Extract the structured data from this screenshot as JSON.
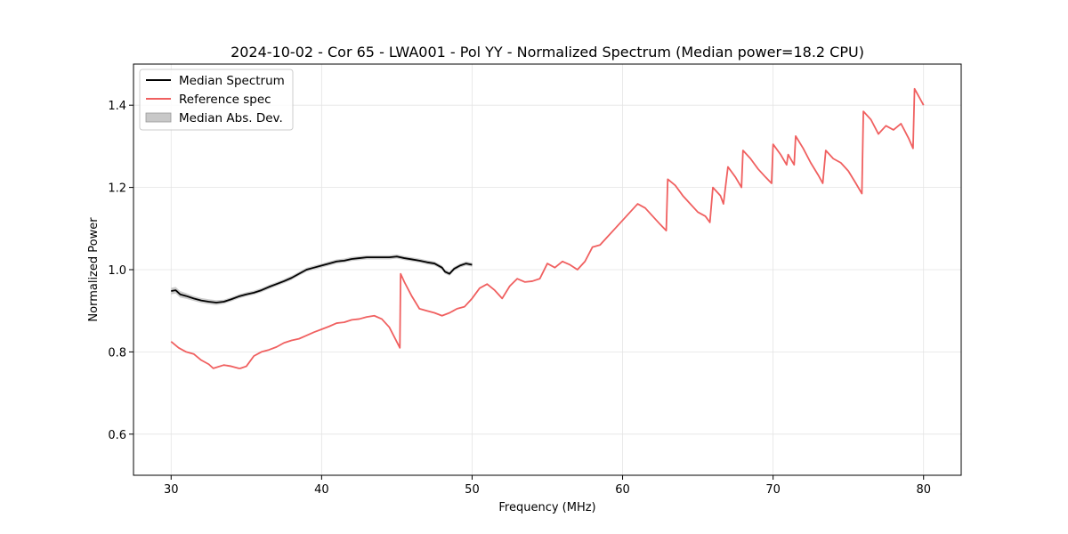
{
  "chart_data": {
    "type": "line",
    "title": "2024-10-02 - Cor 65 - LWA001 - Pol YY - Normalized Spectrum (Median power=18.2 CPU)",
    "xlabel": "Frequency (MHz)",
    "ylabel": "Normalized Power",
    "xlim": [
      27.5,
      82.5
    ],
    "ylim": [
      0.5,
      1.5
    ],
    "xticks": [
      30,
      40,
      50,
      60,
      70,
      80
    ],
    "yticks": [
      0.6,
      0.8,
      1.0,
      1.2,
      1.4
    ],
    "xtick_labels": [
      "30",
      "40",
      "50",
      "60",
      "70",
      "80"
    ],
    "ytick_labels": [
      "0.6",
      "0.8",
      "1.0",
      "1.2",
      "1.4"
    ],
    "grid": true,
    "legend_position": "top-left",
    "legend": [
      "Median Spectrum",
      "Reference spec",
      "Median Abs. Dev."
    ],
    "colors": {
      "median": "#000000",
      "reference": "#f06060",
      "mad": "#c8c8c8"
    },
    "series": [
      {
        "name": "Median Spectrum",
        "x": [
          30.0,
          30.3,
          30.6,
          31.0,
          31.5,
          32.0,
          32.5,
          33.0,
          33.5,
          34.0,
          34.5,
          35.0,
          35.5,
          36.0,
          36.5,
          37.0,
          37.5,
          38.0,
          38.5,
          39.0,
          39.5,
          40.0,
          40.5,
          41.0,
          41.5,
          42.0,
          42.5,
          43.0,
          43.5,
          44.0,
          44.5,
          45.0,
          45.5,
          46.0,
          46.5,
          47.0,
          47.5,
          48.0,
          48.2,
          48.5,
          48.8,
          49.2,
          49.6,
          50.0
        ],
        "y": [
          0.948,
          0.95,
          0.94,
          0.936,
          0.93,
          0.925,
          0.922,
          0.92,
          0.922,
          0.928,
          0.935,
          0.94,
          0.944,
          0.95,
          0.958,
          0.965,
          0.972,
          0.98,
          0.99,
          1.0,
          1.005,
          1.01,
          1.015,
          1.02,
          1.022,
          1.026,
          1.028,
          1.03,
          1.03,
          1.03,
          1.03,
          1.032,
          1.028,
          1.025,
          1.022,
          1.018,
          1.015,
          1.005,
          0.995,
          0.99,
          1.002,
          1.01,
          1.015,
          1.012
        ]
      },
      {
        "name": "Median Abs. Dev.",
        "x": [
          30.0,
          30.3,
          30.6,
          31.0,
          31.5,
          32.0,
          32.5,
          33.0,
          33.5,
          34.0,
          34.5,
          35.0,
          35.5,
          36.0,
          36.5,
          37.0,
          37.5,
          38.0,
          38.5,
          39.0,
          39.5,
          40.0,
          40.5,
          41.0,
          41.5,
          42.0,
          42.5,
          43.0,
          43.5,
          44.0,
          44.5,
          45.0,
          45.5,
          46.0,
          46.5,
          47.0,
          47.5,
          48.0,
          48.2,
          48.5,
          48.8,
          49.2,
          49.6,
          50.0
        ],
        "upper": [
          0.956,
          0.958,
          0.948,
          0.943,
          0.936,
          0.931,
          0.928,
          0.926,
          0.927,
          0.933,
          0.94,
          0.945,
          0.949,
          0.955,
          0.963,
          0.97,
          0.977,
          0.985,
          0.995,
          1.005,
          1.01,
          1.015,
          1.02,
          1.025,
          1.027,
          1.031,
          1.033,
          1.035,
          1.035,
          1.035,
          1.035,
          1.037,
          1.033,
          1.03,
          1.027,
          1.023,
          1.02,
          1.01,
          1.0,
          0.995,
          1.007,
          1.015,
          1.02,
          1.017
        ],
        "lower": [
          0.94,
          0.942,
          0.932,
          0.929,
          0.924,
          0.919,
          0.916,
          0.914,
          0.917,
          0.923,
          0.93,
          0.935,
          0.939,
          0.945,
          0.953,
          0.96,
          0.967,
          0.975,
          0.985,
          0.995,
          1.0,
          1.005,
          1.01,
          1.015,
          1.017,
          1.021,
          1.023,
          1.025,
          1.025,
          1.025,
          1.025,
          1.027,
          1.023,
          1.02,
          1.017,
          1.013,
          1.01,
          1.0,
          0.99,
          0.985,
          0.997,
          1.005,
          1.01,
          1.007
        ]
      },
      {
        "name": "Reference spec",
        "x": [
          30.0,
          30.5,
          31.0,
          31.5,
          32.0,
          32.5,
          32.8,
          33.5,
          34.0,
          34.5,
          34.6,
          35.0,
          35.5,
          36.0,
          36.5,
          37.0,
          37.5,
          38.0,
          38.5,
          39.0,
          39.5,
          40.0,
          40.5,
          41.0,
          41.5,
          42.0,
          42.5,
          43.0,
          43.5,
          44.0,
          44.5,
          45.2,
          45.25,
          45.5,
          46.0,
          46.5,
          47.0,
          47.5,
          48.0,
          48.5,
          49.0,
          49.5,
          50.0,
          50.5,
          51.0,
          51.5,
          52.0,
          52.5,
          53.0,
          53.5,
          54.0,
          54.5,
          55.0,
          55.5,
          56.0,
          56.5,
          57.0,
          57.5,
          58.0,
          58.5,
          59.0,
          59.5,
          60.0,
          60.5,
          61.0,
          61.5,
          62.0,
          62.5,
          62.9,
          63.0,
          63.5,
          64.0,
          64.5,
          65.0,
          65.5,
          65.8,
          66.0,
          66.5,
          66.7,
          67.0,
          67.5,
          67.9,
          68.0,
          68.5,
          69.0,
          69.5,
          69.9,
          70.0,
          70.5,
          70.9,
          71.0,
          71.4,
          71.5,
          72.0,
          72.5,
          73.0,
          73.3,
          73.5,
          74.0,
          74.5,
          75.0,
          75.5,
          75.9,
          76.0,
          76.5,
          77.0,
          77.5,
          78.0,
          78.5,
          79.0,
          79.3,
          79.4,
          80.0
        ],
        "y": [
          0.825,
          0.81,
          0.8,
          0.795,
          0.78,
          0.77,
          0.76,
          0.768,
          0.765,
          0.76,
          0.76,
          0.765,
          0.79,
          0.8,
          0.805,
          0.812,
          0.822,
          0.828,
          0.832,
          0.84,
          0.848,
          0.855,
          0.862,
          0.87,
          0.872,
          0.878,
          0.88,
          0.885,
          0.888,
          0.88,
          0.86,
          0.81,
          0.99,
          0.97,
          0.935,
          0.905,
          0.9,
          0.895,
          0.888,
          0.895,
          0.905,
          0.91,
          0.93,
          0.955,
          0.965,
          0.95,
          0.93,
          0.96,
          0.978,
          0.97,
          0.972,
          0.978,
          1.015,
          1.005,
          1.02,
          1.012,
          1.0,
          1.02,
          1.055,
          1.06,
          1.08,
          1.1,
          1.12,
          1.14,
          1.16,
          1.15,
          1.13,
          1.11,
          1.095,
          1.22,
          1.205,
          1.18,
          1.16,
          1.14,
          1.13,
          1.115,
          1.2,
          1.18,
          1.16,
          1.25,
          1.225,
          1.2,
          1.29,
          1.27,
          1.245,
          1.225,
          1.21,
          1.305,
          1.28,
          1.255,
          1.28,
          1.255,
          1.325,
          1.295,
          1.26,
          1.23,
          1.21,
          1.29,
          1.27,
          1.26,
          1.24,
          1.21,
          1.185,
          1.385,
          1.365,
          1.33,
          1.35,
          1.34,
          1.355,
          1.32,
          1.295,
          1.44,
          1.4
        ]
      }
    ]
  }
}
